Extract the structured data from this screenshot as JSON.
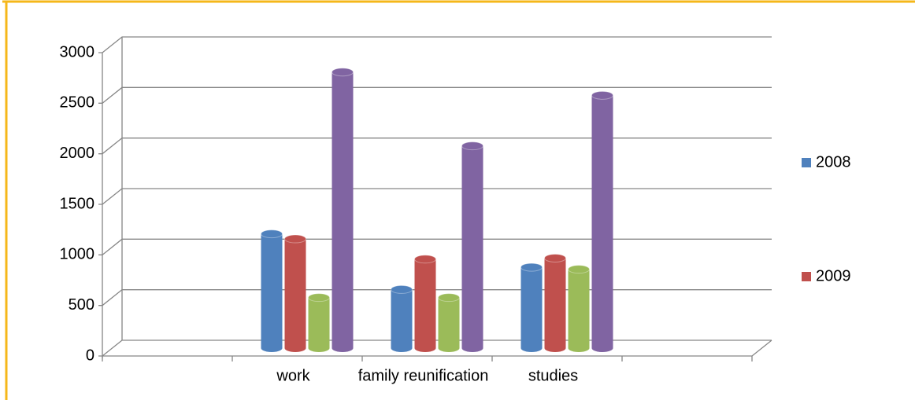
{
  "chart_data": {
    "type": "bar",
    "categories": [
      null,
      "work",
      "family reunification",
      "studies",
      null
    ],
    "series": [
      {
        "name": "2008",
        "color": "#4f81bd",
        "values": [
          null,
          1130,
          580,
          800,
          null
        ]
      },
      {
        "name": "2009",
        "color": "#c0504d",
        "values": [
          null,
          1080,
          880,
          890,
          null
        ]
      },
      {
        "color": "#9bbb59",
        "values": [
          null,
          500,
          500,
          780,
          null
        ]
      },
      {
        "color": "#8064a2",
        "values": [
          null,
          2730,
          2000,
          2500,
          null
        ]
      }
    ],
    "ylim": [
      0,
      3000
    ],
    "yticks": [
      0,
      500,
      1000,
      1500,
      2000,
      2500,
      3000
    ],
    "grid": true,
    "legend": "right"
  }
}
